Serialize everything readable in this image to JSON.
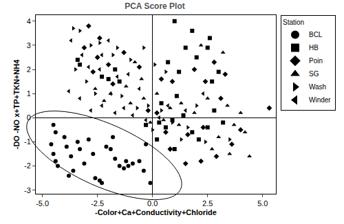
{
  "chart_data": {
    "type": "scatter",
    "title": "PCA Score Plot",
    "x_label": "-Color+Ca+Conductivity+Chloride",
    "y_label": "-DO -NO x+TP+TKN+NH4",
    "legend": "right",
    "legend_title": "Station",
    "grid": false,
    "xlim": [
      -5.3,
      5.6
    ],
    "ylim": [
      -3.15,
      4.25
    ],
    "xticks": [
      {
        "value": -5,
        "label": "-5.0"
      },
      {
        "value": -2.5,
        "label": "-2.5"
      },
      {
        "value": 0,
        "label": "0.0"
      },
      {
        "value": 2.5,
        "label": "2.5"
      },
      {
        "value": 5,
        "label": "5.0"
      }
    ],
    "yticks": [
      -3,
      -2,
      -1,
      0,
      1,
      2,
      3,
      4
    ],
    "series": [
      {
        "name": "BCL",
        "color": "#000000",
        "marker": "circle",
        "x": [
          -4.5,
          -4.4,
          -4.6,
          -4.5,
          -4.4,
          -4.3,
          -4.0,
          -3.9,
          -3.7,
          -3.6,
          -3.4,
          -3.3,
          -3.1,
          -2.9,
          -2.7,
          -2.6,
          -2.4,
          -2.3,
          -2.1,
          -1.9,
          -1.8,
          -1.7,
          -1.5,
          -1.3,
          -1.2,
          -1.1,
          -0.9,
          -0.6,
          -0.4,
          -0.3,
          -0.1,
          -3.8
        ],
        "values": [
          -0.3,
          -0.6,
          -1.1,
          -1.5,
          -1.8,
          -2.0,
          -0.8,
          -1.2,
          -1.6,
          -2.2,
          -1.0,
          -1.3,
          -1.9,
          -0.9,
          -1.5,
          -2.5,
          -2.6,
          -2.7,
          -1.2,
          -1.3,
          -0.8,
          -1.7,
          -2.0,
          -2.1,
          -1.8,
          -2.0,
          -1.9,
          -1.8,
          -2.2,
          -1.1,
          -2.7,
          -2.4
        ]
      },
      {
        "name": "HB",
        "color": "#000000",
        "marker": "square",
        "x": [
          1.0,
          2.6,
          2.5,
          1.8,
          1.5,
          2.0,
          0.7,
          1.2,
          3.0,
          2.7,
          -3.4,
          -3.3,
          -2.3,
          -2.0,
          -1.7,
          -1.5,
          0.3,
          0.6,
          0.9,
          1.4,
          1.8,
          2.1,
          2.5,
          2.8,
          3.2,
          0.4,
          1.1,
          -0.3,
          0.2,
          1.0
        ],
        "values": [
          4.0,
          3.3,
          2.9,
          3.6,
          2.9,
          2.5,
          2.3,
          1.9,
          1.9,
          1.5,
          2.4,
          2.2,
          1.7,
          1.6,
          2.0,
          1.5,
          -0.2,
          -0.4,
          -0.1,
          0.1,
          -0.6,
          -0.9,
          -0.4,
          0.3,
          -0.2,
          0.6,
          0.9,
          -0.3,
          -0.9,
          -1.3
        ]
      },
      {
        "name": "Poin",
        "color": "#000000",
        "marker": "diamond",
        "x": [
          -2.9,
          -2.4,
          -3.1,
          -2.5,
          -2.0,
          -1.3,
          -0.6,
          0.4,
          0.9,
          1.9,
          2.4,
          2.8,
          3.3,
          5.3,
          4.0,
          3.6,
          2.9,
          2.2,
          1.5,
          0.8,
          1.6,
          2.3,
          0.2,
          -0.2,
          3.1,
          -1.8,
          -2.7,
          0.6
        ],
        "values": [
          3.8,
          3.3,
          2.9,
          2.5,
          2.2,
          2.7,
          2.1,
          1.6,
          1.5,
          2.0,
          1.5,
          2.3,
          1.8,
          0.4,
          -0.5,
          -1.1,
          -1.6,
          -1.8,
          -1.9,
          -1.3,
          -0.7,
          -0.4,
          0.2,
          0.3,
          0.8,
          1.4,
          1.9,
          -0.6
        ]
      },
      {
        "name": "SG",
        "color": "#000000",
        "marker": "triangle-up",
        "x": [
          -2.6,
          -1.9,
          -1.2,
          -0.5,
          0.2,
          0.8,
          1.3,
          1.9,
          2.5,
          3.4,
          4.0,
          4.2,
          3.7,
          3.0,
          2.7,
          4.4,
          3.5,
          -0.4,
          -1.0,
          -0.1,
          0.5,
          1.2,
          -2.2,
          2.2,
          3.2,
          -0.8
        ],
        "values": [
          1.2,
          1.0,
          1.3,
          1.6,
          1.0,
          0.4,
          0.6,
          0.2,
          0.8,
          0.5,
          0.2,
          -0.6,
          -0.3,
          -0.8,
          -1.3,
          -1.6,
          -1.5,
          0.8,
          0.6,
          -0.2,
          -0.1,
          -0.3,
          0.7,
          3.0,
          2.7,
          2.3
        ]
      },
      {
        "name": "Wash",
        "color": "#000000",
        "marker": "triangle-right",
        "x": [
          -3.6,
          -3.3,
          -2.8,
          -2.4,
          -1.8,
          -1.0,
          -0.4,
          0.1,
          0.6,
          -3.0,
          -2.6,
          -1.4,
          -0.7,
          -0.2,
          0.4,
          0.9,
          1.6,
          2.4,
          3.5,
          1.3,
          -3.5,
          0.0,
          2.0,
          -1.6
        ],
        "values": [
          3.7,
          3.6,
          3.0,
          3.1,
          2.6,
          2.4,
          2.9,
          2.2,
          1.9,
          1.5,
          1.0,
          0.9,
          0.4,
          0.5,
          0.3,
          -0.2,
          -0.4,
          -1.0,
          -0.9,
          -0.9,
          2.0,
          -0.5,
          0.5,
          2.9
        ]
      },
      {
        "name": "Winder",
        "color": "#000000",
        "marker": "triangle-left",
        "x": [
          -3.7,
          -3.2,
          -2.9,
          -2.3,
          -1.6,
          -1.1,
          -3.8,
          -3.3,
          -2.8,
          -2.3,
          -1.7,
          -1.3,
          -0.9,
          -0.3,
          0.3,
          0.7,
          1.5,
          2.3,
          -1.9,
          -0.6,
          -2.0,
          -2.4
        ],
        "values": [
          3.2,
          2.6,
          2.1,
          2.6,
          1.7,
          1.8,
          1.1,
          0.8,
          0.3,
          0.5,
          0.2,
          0.4,
          0.1,
          -0.1,
          0.0,
          0.5,
          0.3,
          1.0,
          1.0,
          1.2,
          3.2,
          2.0
        ]
      }
    ]
  }
}
